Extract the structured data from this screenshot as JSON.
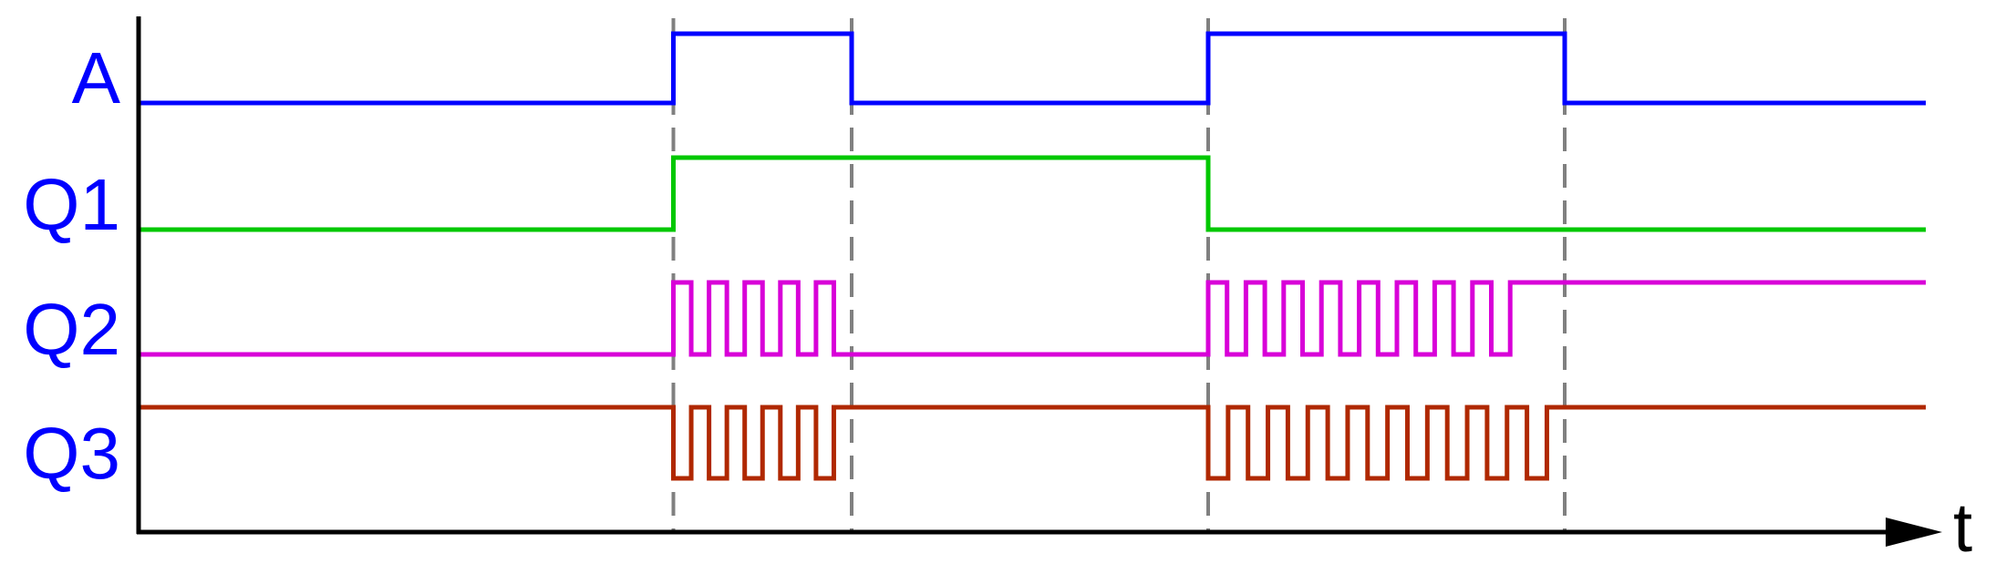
{
  "axis": {
    "time_label": "t"
  },
  "events": [
    0,
    3,
    4,
    6,
    8
  ],
  "signals": [
    {
      "label": "A",
      "color": "#0000ff",
      "initial_level": 0,
      "toggles": [
        3,
        4,
        6,
        8
      ]
    },
    {
      "label": "Q1",
      "color": "#00c800",
      "initial_level": 0,
      "toggles": [
        3,
        6
      ]
    },
    {
      "label": "Q2",
      "color": "#d800d8",
      "initial_level": 0,
      "bursts": [
        {
          "start": 3,
          "end": 3.9,
          "pulses": 5,
          "end_level": 0
        },
        {
          "start": 6,
          "end": 7.8,
          "pulses": 9,
          "end_level": 1
        }
      ]
    },
    {
      "label": "Q3",
      "color": "#b02800",
      "initial_level": 1,
      "bursts": [
        {
          "start": 3,
          "end": 3.9,
          "pulses": 5,
          "end_level": 1
        },
        {
          "start": 6,
          "end": 7.9,
          "pulses": 9,
          "end_level": 1
        }
      ]
    }
  ],
  "colors": {
    "axis": "#000000",
    "marker": "#808080",
    "label": "#0000ff"
  }
}
